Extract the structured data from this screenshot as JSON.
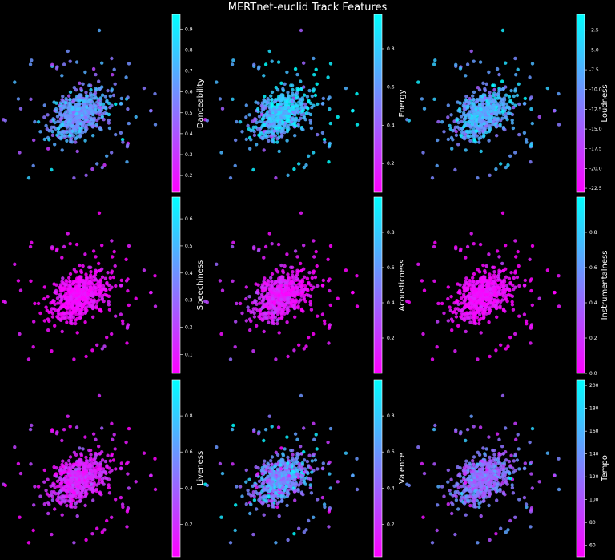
{
  "title": "MERTnet-euclid Track Features",
  "colors": {
    "background": "#000000",
    "cmap_low": "#ff00ff",
    "cmap_high": "#00ffff",
    "text": "#ffffff"
  },
  "chart_data": [
    {
      "type": "scatter",
      "feature": "Danceability",
      "colorbar_label": "Danceability",
      "vmin": 0.12,
      "vmax": 0.97,
      "ticks": [
        "0.2",
        "0.3",
        "0.4",
        "0.5",
        "0.6",
        "0.7",
        "0.8",
        "0.9"
      ],
      "tick_values": [
        0.2,
        0.3,
        0.4,
        0.5,
        0.6,
        0.7,
        0.8,
        0.9
      ],
      "center_value": 0.62,
      "spread": 0.12,
      "grid": false
    },
    {
      "type": "scatter",
      "feature": "Energy",
      "colorbar_label": "Energy",
      "vmin": 0.05,
      "vmax": 0.98,
      "ticks": [
        "0.2",
        "0.4",
        "0.6",
        "0.8"
      ],
      "tick_values": [
        0.2,
        0.4,
        0.6,
        0.8
      ],
      "center_value": 0.75,
      "spread": 0.16,
      "grid": false
    },
    {
      "type": "scatter",
      "feature": "Loudness",
      "colorbar_label": "Loudness",
      "vmin": -23,
      "vmax": -0.5,
      "ticks": [
        "-2.5",
        "-5.0",
        "-7.5",
        "-10.0",
        "-12.5",
        "-15.0",
        "-17.5",
        "-20.0",
        "-22.5"
      ],
      "tick_values": [
        -2.5,
        -5,
        -7.5,
        -10,
        -12.5,
        -15,
        -17.5,
        -20,
        -22.5
      ],
      "center_value": -8,
      "spread": 3.5,
      "grid": false
    },
    {
      "type": "scatter",
      "feature": "Speechiness",
      "colorbar_label": "Speechiness",
      "vmin": 0.03,
      "vmax": 0.68,
      "ticks": [
        "0.1",
        "0.2",
        "0.3",
        "0.4",
        "0.5",
        "0.6"
      ],
      "tick_values": [
        0.1,
        0.2,
        0.3,
        0.4,
        0.5,
        0.6
      ],
      "center_value": 0.06,
      "spread": 0.04,
      "grid": false
    },
    {
      "type": "scatter",
      "feature": "Acousticness",
      "colorbar_label": "Acousticness",
      "vmin": 0.0,
      "vmax": 1.0,
      "ticks": [
        "0.2",
        "0.4",
        "0.6",
        "0.8"
      ],
      "tick_values": [
        0.2,
        0.4,
        0.6,
        0.8
      ],
      "center_value": 0.08,
      "spread": 0.08,
      "grid": false
    },
    {
      "type": "scatter",
      "feature": "Instrumentalness",
      "colorbar_label": "Instrumentalness",
      "vmin": 0.0,
      "vmax": 1.0,
      "ticks": [
        "0.0",
        "0.2",
        "0.4",
        "0.6",
        "0.8"
      ],
      "tick_values": [
        0.0,
        0.2,
        0.4,
        0.6,
        0.8
      ],
      "center_value": 0.05,
      "spread": 0.06,
      "grid": false
    },
    {
      "type": "scatter",
      "feature": "Liveness",
      "colorbar_label": "Liveness",
      "vmin": 0.02,
      "vmax": 1.0,
      "ticks": [
        "0.2",
        "0.4",
        "0.6",
        "0.8"
      ],
      "tick_values": [
        0.2,
        0.4,
        0.6,
        0.8
      ],
      "center_value": 0.15,
      "spread": 0.1,
      "grid": false
    },
    {
      "type": "scatter",
      "feature": "Valence",
      "colorbar_label": "Valence",
      "vmin": 0.02,
      "vmax": 1.0,
      "ticks": [
        "0.2",
        "0.4",
        "0.6",
        "0.8"
      ],
      "tick_values": [
        0.2,
        0.4,
        0.6,
        0.8
      ],
      "center_value": 0.55,
      "spread": 0.2,
      "grid": false
    },
    {
      "type": "scatter",
      "feature": "Tempo",
      "colorbar_label": "Tempo",
      "vmin": 50,
      "vmax": 205,
      "ticks": [
        "60",
        "80",
        "100",
        "120",
        "140",
        "160",
        "180",
        "200"
      ],
      "tick_values": [
        60,
        80,
        100,
        120,
        140,
        160,
        180,
        200
      ],
      "center_value": 118,
      "spread": 22,
      "grid": false
    }
  ]
}
